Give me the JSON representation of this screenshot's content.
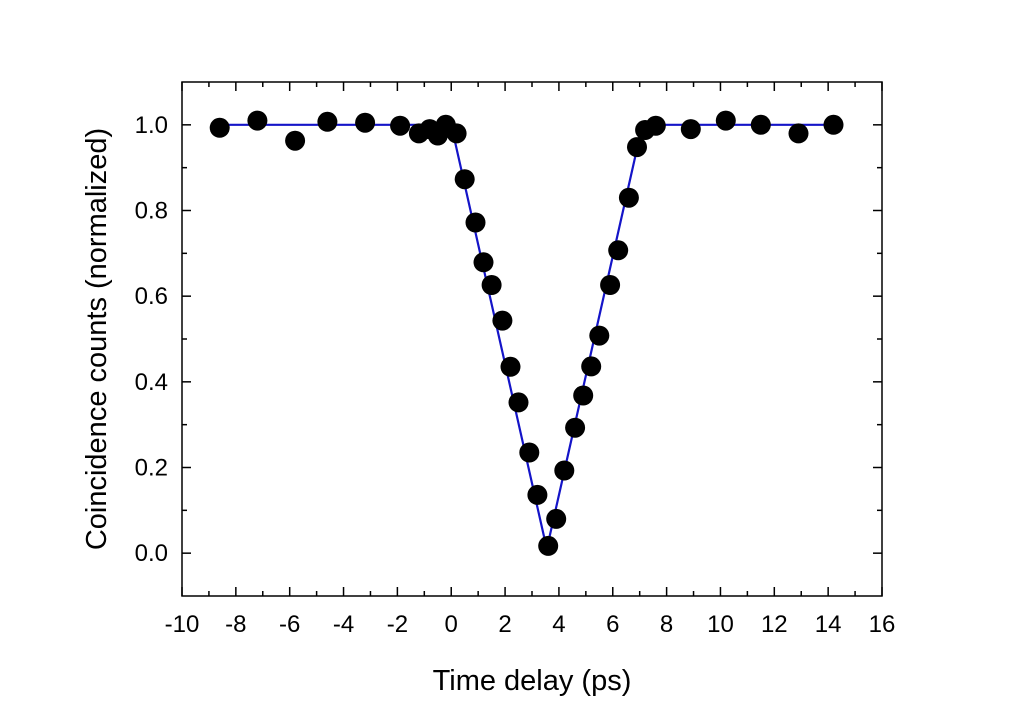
{
  "chart_data": {
    "type": "scatter",
    "xlabel": "Time delay (ps)",
    "ylabel": "Coincidence counts (normalized)",
    "xlim": [
      -10,
      16
    ],
    "ylim": [
      -0.1,
      1.1
    ],
    "x_ticks": [
      -10,
      -8,
      -6,
      -4,
      -2,
      0,
      2,
      4,
      6,
      8,
      10,
      12,
      14,
      16
    ],
    "x_tick_labels": [
      "-10",
      "-8",
      "-6",
      "-4",
      "-2",
      "0",
      "2",
      "4",
      "6",
      "8",
      "10",
      "12",
      "14",
      "16"
    ],
    "y_ticks": [
      0.0,
      0.2,
      0.4,
      0.6,
      0.8,
      1.0
    ],
    "y_tick_labels": [
      "0.0",
      "0.2",
      "0.4",
      "0.6",
      "0.8",
      "1.0"
    ],
    "minor_ticks": true,
    "grid": false,
    "legend": "none",
    "series": [
      {
        "kind": "scatter",
        "color": "#000000",
        "points": [
          [
            -8.6,
            0.993
          ],
          [
            -7.2,
            1.01
          ],
          [
            -5.8,
            0.963
          ],
          [
            -4.6,
            1.007
          ],
          [
            -3.2,
            1.005
          ],
          [
            -1.9,
            0.998
          ],
          [
            -1.2,
            0.98
          ],
          [
            -0.8,
            0.99
          ],
          [
            -0.5,
            0.975
          ],
          [
            -0.2,
            1.0
          ],
          [
            0.2,
            0.98
          ],
          [
            0.5,
            0.873
          ],
          [
            0.9,
            0.772
          ],
          [
            1.2,
            0.679
          ],
          [
            1.5,
            0.626
          ],
          [
            1.9,
            0.543
          ],
          [
            2.2,
            0.435
          ],
          [
            2.5,
            0.352
          ],
          [
            2.9,
            0.235
          ],
          [
            3.2,
            0.136
          ],
          [
            3.6,
            0.017
          ],
          [
            3.9,
            0.08
          ],
          [
            4.2,
            0.193
          ],
          [
            4.6,
            0.293
          ],
          [
            4.9,
            0.368
          ],
          [
            5.2,
            0.436
          ],
          [
            5.5,
            0.508
          ],
          [
            5.9,
            0.626
          ],
          [
            6.2,
            0.707
          ],
          [
            6.6,
            0.83
          ],
          [
            6.9,
            0.948
          ],
          [
            7.2,
            0.988
          ],
          [
            7.6,
            0.998
          ],
          [
            8.9,
            0.99
          ],
          [
            10.2,
            1.01
          ],
          [
            11.5,
            1.0
          ],
          [
            12.9,
            0.98
          ],
          [
            14.2,
            1.0
          ]
        ]
      },
      {
        "kind": "line",
        "color": "#1414c8",
        "points": [
          [
            -8.6,
            1.0
          ],
          [
            0.0,
            1.0
          ],
          [
            3.55,
            0.01
          ],
          [
            7.1,
            1.0
          ],
          [
            14.2,
            1.0
          ]
        ]
      }
    ]
  }
}
